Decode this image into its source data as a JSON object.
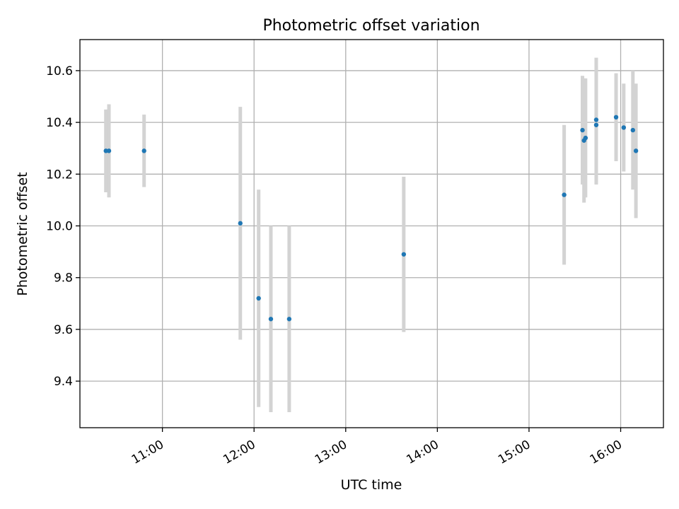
{
  "chart_data": {
    "type": "scatter",
    "title": "Photometric offset variation",
    "xlabel": "UTC time",
    "ylabel": "Photometric offset",
    "x_axis_type": "time",
    "xlim": [
      "10:06",
      "16:28"
    ],
    "ylim": [
      9.22,
      10.72
    ],
    "x_ticks": [
      "11:00",
      "12:00",
      "13:00",
      "14:00",
      "15:00",
      "16:00"
    ],
    "y_ticks": [
      "9.4",
      "9.6",
      "9.8",
      "10.0",
      "10.2",
      "10.4",
      "10.6"
    ],
    "grid": true,
    "point_color": "#1f77b4",
    "errorbar_color": "#d3d3d3",
    "points": [
      {
        "time": "10:23",
        "y": 10.29,
        "err": 0.16
      },
      {
        "time": "10:25",
        "y": 10.29,
        "err": 0.18
      },
      {
        "time": "10:48",
        "y": 10.29,
        "err": 0.14
      },
      {
        "time": "11:51",
        "y": 10.01,
        "err": 0.45
      },
      {
        "time": "12:03",
        "y": 9.72,
        "err": 0.42
      },
      {
        "time": "12:11",
        "y": 9.64,
        "err": 0.36
      },
      {
        "time": "12:23",
        "y": 9.64,
        "err": 0.36
      },
      {
        "time": "13:38",
        "y": 9.89,
        "err": 0.3
      },
      {
        "time": "15:23",
        "y": 10.12,
        "err": 0.27
      },
      {
        "time": "15:35",
        "y": 10.37,
        "err": 0.21
      },
      {
        "time": "15:36",
        "y": 10.33,
        "err": 0.24
      },
      {
        "time": "15:37",
        "y": 10.34,
        "err": 0.23
      },
      {
        "time": "15:44",
        "y": 10.41,
        "err": 0.24
      },
      {
        "time": "15:44",
        "y": 10.39,
        "err": 0.23
      },
      {
        "time": "15:57",
        "y": 10.42,
        "err": 0.17
      },
      {
        "time": "16:02",
        "y": 10.38,
        "err": 0.17
      },
      {
        "time": "16:08",
        "y": 10.37,
        "err": 0.23
      },
      {
        "time": "16:10",
        "y": 10.29,
        "err": 0.26
      }
    ]
  }
}
